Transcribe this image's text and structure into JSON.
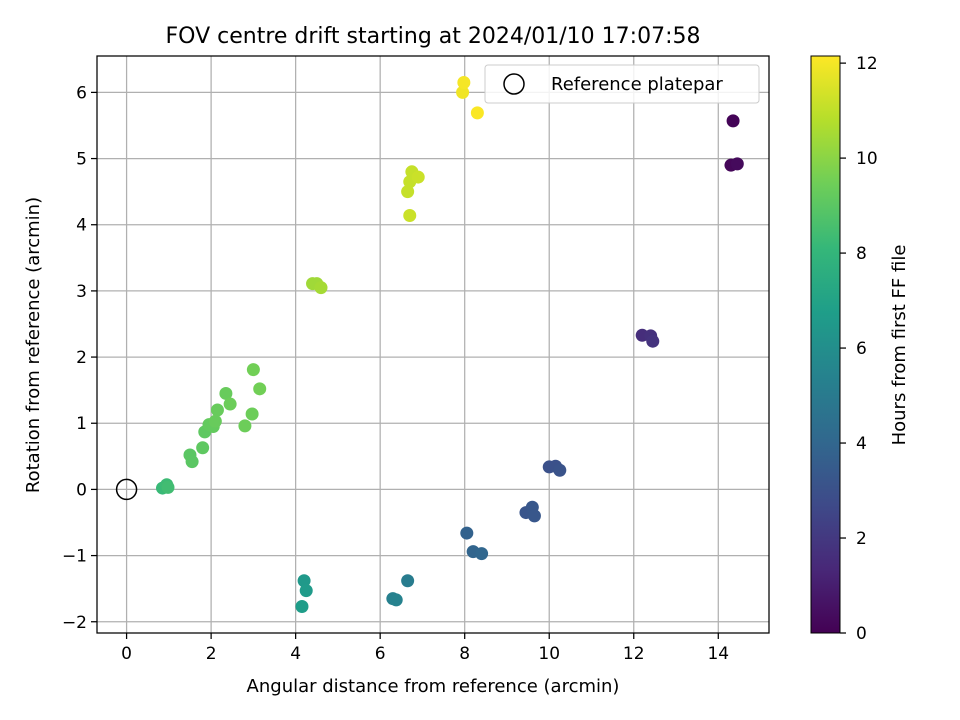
{
  "chart_data": {
    "type": "scatter",
    "title": "FOV centre drift starting at 2024/01/10 17:07:58",
    "xlabel": "Angular distance from reference (arcmin)",
    "ylabel": "Rotation from reference (arcmin)",
    "xlim": [
      -0.7,
      15.2
    ],
    "ylim": [
      -2.17,
      6.55
    ],
    "xticks": [
      0,
      2,
      4,
      6,
      8,
      10,
      12,
      14
    ],
    "yticks": [
      -2,
      -1,
      0,
      1,
      2,
      3,
      4,
      5,
      6
    ],
    "grid": true,
    "legend": {
      "position": "top-right",
      "entries": [
        "Reference platepar"
      ]
    },
    "colorbar": {
      "label": "Hours from first FF file",
      "range": [
        0,
        12.15
      ],
      "ticks": [
        0,
        2,
        4,
        6,
        8,
        10,
        12
      ],
      "colormap": "viridis"
    },
    "reference": {
      "x": 0,
      "y": 0
    },
    "points": [
      {
        "x": 14.35,
        "y": 5.57,
        "h": 0.1
      },
      {
        "x": 14.3,
        "y": 4.9,
        "h": 0.2
      },
      {
        "x": 14.45,
        "y": 4.92,
        "h": 0.3
      },
      {
        "x": 12.2,
        "y": 2.33,
        "h": 1.6
      },
      {
        "x": 12.4,
        "y": 2.32,
        "h": 1.7
      },
      {
        "x": 12.45,
        "y": 2.24,
        "h": 1.8
      },
      {
        "x": 10.0,
        "y": 0.34,
        "h": 3.0
      },
      {
        "x": 10.15,
        "y": 0.35,
        "h": 3.0
      },
      {
        "x": 10.25,
        "y": 0.29,
        "h": 3.1
      },
      {
        "x": 9.45,
        "y": -0.35,
        "h": 3.2
      },
      {
        "x": 9.6,
        "y": -0.27,
        "h": 3.3
      },
      {
        "x": 9.65,
        "y": -0.4,
        "h": 3.3
      },
      {
        "x": 8.05,
        "y": -0.66,
        "h": 3.8
      },
      {
        "x": 8.2,
        "y": -0.94,
        "h": 3.9
      },
      {
        "x": 8.4,
        "y": -0.97,
        "h": 4.0
      },
      {
        "x": 6.65,
        "y": -1.38,
        "h": 5.1
      },
      {
        "x": 6.3,
        "y": -1.65,
        "h": 5.3
      },
      {
        "x": 6.38,
        "y": -1.67,
        "h": 5.4
      },
      {
        "x": 4.2,
        "y": -1.38,
        "h": 6.5
      },
      {
        "x": 4.25,
        "y": -1.53,
        "h": 6.6
      },
      {
        "x": 4.15,
        "y": -1.77,
        "h": 6.7
      },
      {
        "x": 0.85,
        "y": 0.02,
        "h": 8.2
      },
      {
        "x": 0.95,
        "y": 0.07,
        "h": 8.3
      },
      {
        "x": 0.98,
        "y": 0.03,
        "h": 8.4
      },
      {
        "x": 1.5,
        "y": 0.52,
        "h": 9.0
      },
      {
        "x": 1.55,
        "y": 0.42,
        "h": 9.0
      },
      {
        "x": 1.8,
        "y": 0.63,
        "h": 9.1
      },
      {
        "x": 1.85,
        "y": 0.87,
        "h": 9.1
      },
      {
        "x": 1.95,
        "y": 0.98,
        "h": 9.2
      },
      {
        "x": 2.05,
        "y": 0.95,
        "h": 9.2
      },
      {
        "x": 2.1,
        "y": 1.03,
        "h": 9.3
      },
      {
        "x": 2.15,
        "y": 1.2,
        "h": 9.3
      },
      {
        "x": 2.35,
        "y": 1.45,
        "h": 9.3
      },
      {
        "x": 2.45,
        "y": 1.29,
        "h": 9.4
      },
      {
        "x": 2.8,
        "y": 0.96,
        "h": 9.4
      },
      {
        "x": 2.97,
        "y": 1.14,
        "h": 9.4
      },
      {
        "x": 3.0,
        "y": 1.81,
        "h": 9.5
      },
      {
        "x": 3.15,
        "y": 1.52,
        "h": 9.5
      },
      {
        "x": 4.4,
        "y": 3.11,
        "h": 10.4
      },
      {
        "x": 4.5,
        "y": 3.11,
        "h": 10.4
      },
      {
        "x": 4.6,
        "y": 3.05,
        "h": 10.5
      },
      {
        "x": 6.65,
        "y": 4.5,
        "h": 11.1
      },
      {
        "x": 6.7,
        "y": 4.65,
        "h": 11.1
      },
      {
        "x": 6.75,
        "y": 4.8,
        "h": 11.1
      },
      {
        "x": 6.9,
        "y": 4.72,
        "h": 11.2
      },
      {
        "x": 6.7,
        "y": 4.14,
        "h": 11.2
      },
      {
        "x": 7.95,
        "y": 6.0,
        "h": 11.9
      },
      {
        "x": 7.98,
        "y": 6.15,
        "h": 12.0
      },
      {
        "x": 8.3,
        "y": 5.69,
        "h": 12.1
      }
    ]
  }
}
